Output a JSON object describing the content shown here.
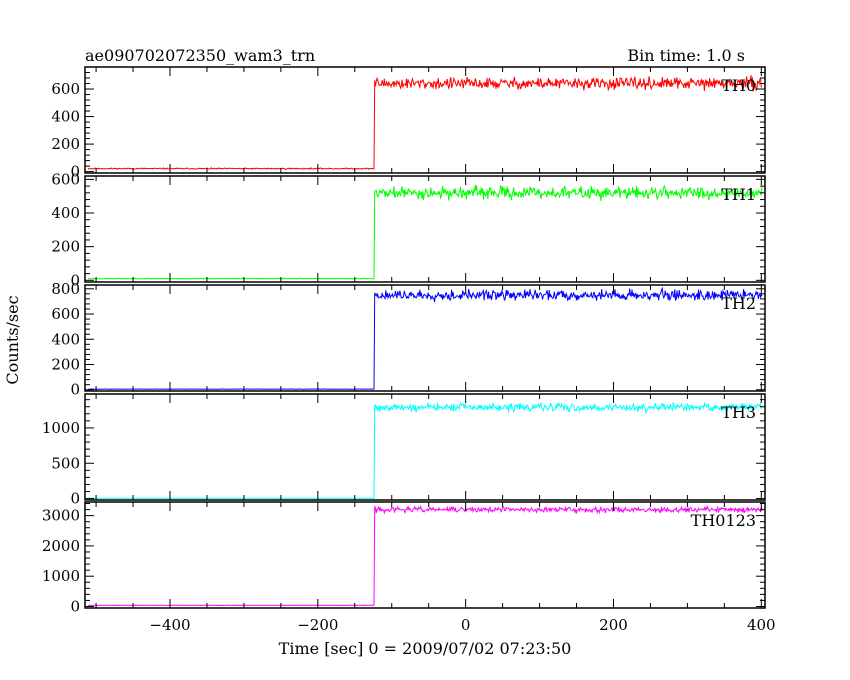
{
  "header": {
    "title": "ae090702072350_wam3_trn",
    "bin_time": "Bin time: 1.0 s"
  },
  "chart_data": {
    "type": "line",
    "xlabel": "Time [sec] 0 = 2009/07/02 07:23:50",
    "ylabel": "Counts/sec",
    "xlim": [
      -515,
      405
    ],
    "x_ticks": [
      -400,
      -200,
      0,
      200,
      400
    ],
    "x_tick_labels": [
      "−400",
      "−200",
      "0",
      "200",
      "400"
    ],
    "step_time": -123,
    "panels": [
      {
        "name": "TH0",
        "color": "#ff0000",
        "ylim": [
          -10,
          760
        ],
        "y_ticks": [
          0,
          200,
          400,
          600
        ],
        "y_tick_labels": [
          "0",
          "200",
          "400",
          "600"
        ],
        "pre_level": 22,
        "post_level": 640,
        "noise": 32,
        "seed": 11
      },
      {
        "name": "TH1",
        "color": "#00ff00",
        "ylim": [
          -10,
          620
        ],
        "y_ticks": [
          0,
          200,
          400,
          600
        ],
        "y_tick_labels": [
          "0",
          "200",
          "400",
          "600"
        ],
        "pre_level": 10,
        "post_level": 520,
        "noise": 28,
        "seed": 23
      },
      {
        "name": "TH2",
        "color": "#0000ff",
        "ylim": [
          -10,
          830
        ],
        "y_ticks": [
          0,
          200,
          400,
          600,
          800
        ],
        "y_tick_labels": [
          "0",
          "200",
          "400",
          "600",
          "800"
        ],
        "pre_level": 5,
        "post_level": 750,
        "noise": 32,
        "seed": 37
      },
      {
        "name": "TH3",
        "color": "#00ffff",
        "ylim": [
          -20,
          1480
        ],
        "y_ticks": [
          0,
          500,
          1000
        ],
        "y_tick_labels": [
          "0",
          "500",
          "1000"
        ],
        "pre_level": 5,
        "post_level": 1290,
        "noise": 42,
        "seed": 41
      },
      {
        "name": "TH0123",
        "color": "#ff00ff",
        "ylim": [
          -50,
          3450
        ],
        "y_ticks": [
          0,
          1000,
          2000,
          3000
        ],
        "y_tick_labels": [
          "0",
          "1000",
          "2000",
          "3000"
        ],
        "pre_level": 40,
        "post_level": 3200,
        "noise": 65,
        "seed": 53
      }
    ]
  }
}
